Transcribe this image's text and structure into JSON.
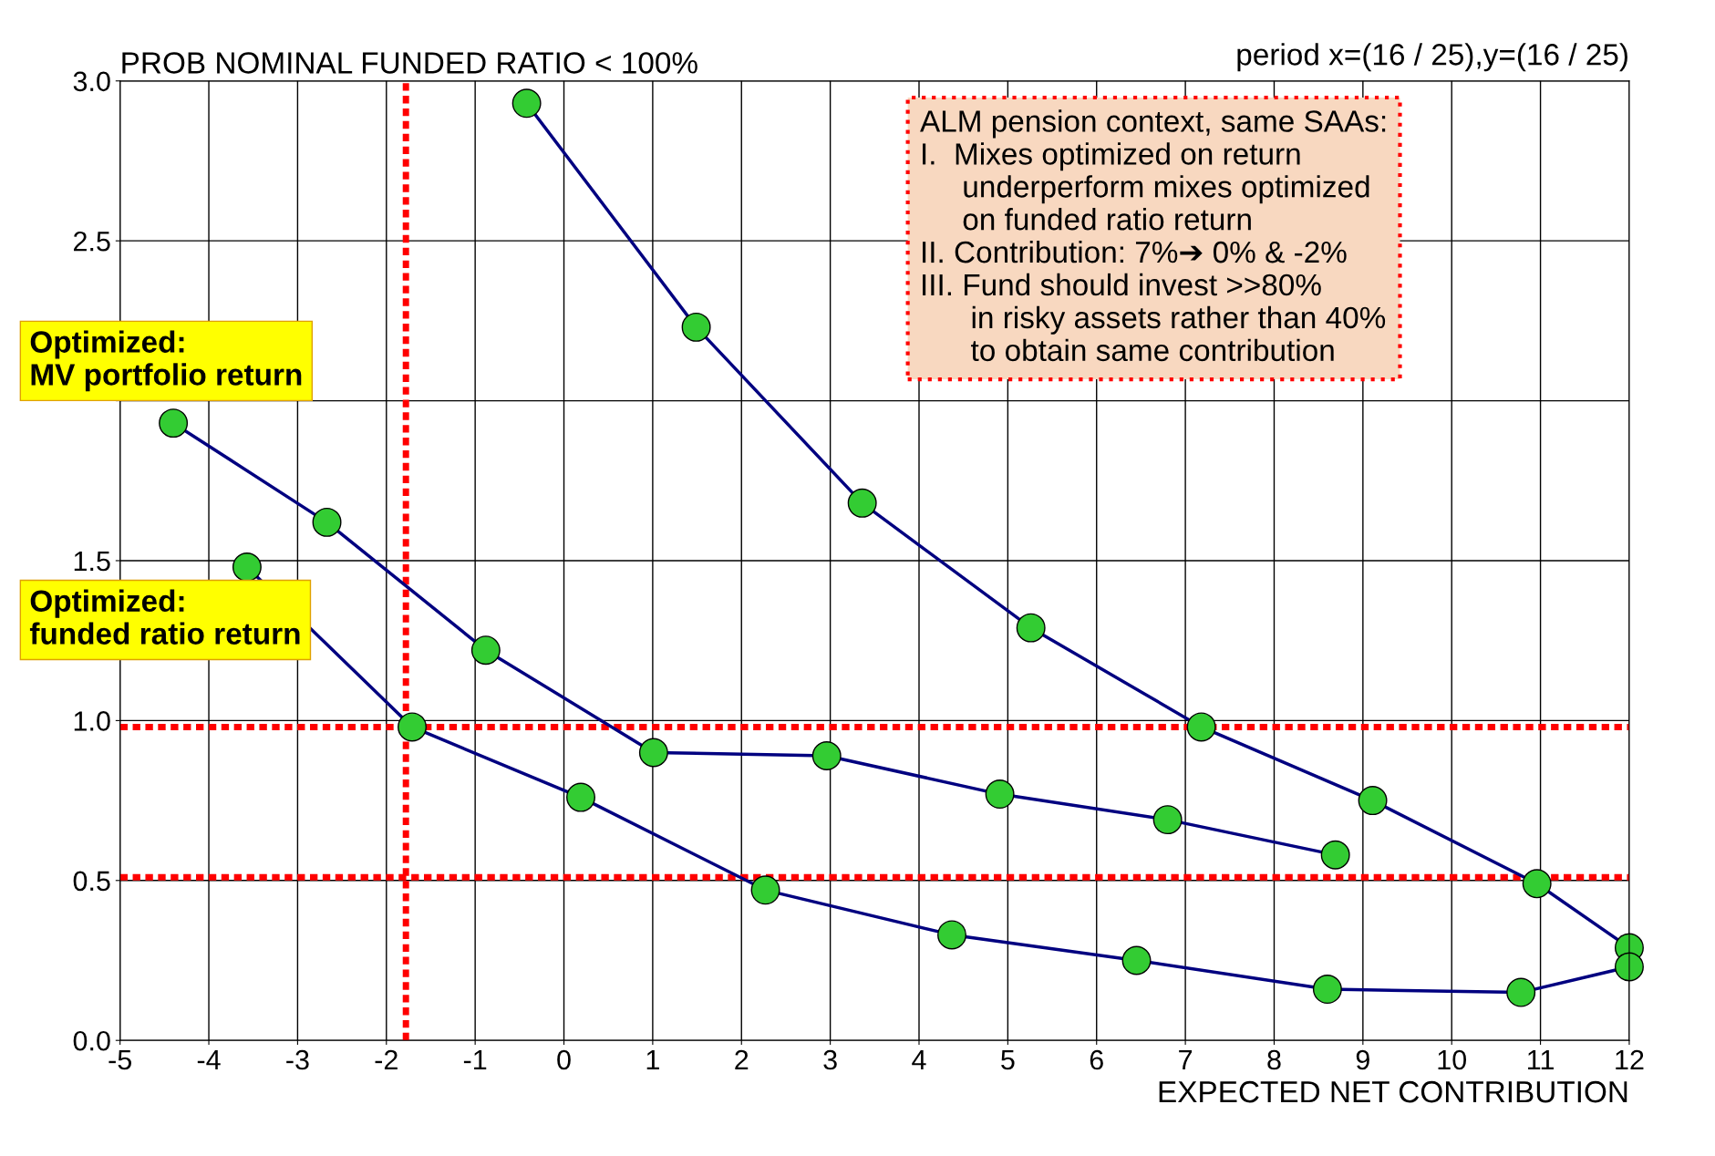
{
  "chart_data": {
    "type": "line",
    "title": "PROB NOMINAL FUNDED RATIO < 100%",
    "subtitle": "period x=(16 / 25),y=(16 / 25)",
    "xlabel": "EXPECTED NET CONTRIBUTION",
    "series": [
      {
        "color": "#000080",
        "x": [
          -0.42,
          1.49,
          3.36,
          5.26,
          7.18,
          9.11,
          10.96,
          12.0
        ],
        "values": [
          2.93,
          2.23,
          1.68,
          1.29,
          0.98,
          0.75,
          0.49,
          0.29
        ]
      },
      {
        "color": "#000080",
        "x": [
          -4.4,
          -2.67,
          -0.88,
          1.01,
          2.96,
          4.91,
          6.8,
          8.69
        ],
        "values": [
          1.93,
          1.62,
          1.22,
          0.9,
          0.89,
          0.77,
          0.69,
          0.58
        ]
      },
      {
        "color": "#000080",
        "x": [
          -3.57,
          -1.71,
          0.19,
          2.27,
          4.37,
          6.45,
          8.6,
          10.78,
          12.0
        ],
        "values": [
          1.48,
          0.98,
          0.76,
          0.47,
          0.33,
          0.25,
          0.16,
          0.15,
          0.23
        ]
      }
    ],
    "xlim": [
      -5,
      12
    ],
    "ylim": [
      0,
      3
    ],
    "xticks": [
      -5,
      -4,
      -3,
      -2,
      -1,
      0,
      1,
      2,
      3,
      4,
      5,
      6,
      7,
      8,
      9,
      10,
      11,
      12
    ],
    "yticks": [
      {
        "value": 0,
        "label": "0.0"
      },
      0.5,
      {
        "value": 1,
        "label": "1.0"
      },
      1.5,
      {
        "value": 2,
        "label": null
      },
      2.5,
      {
        "value": 3,
        "label": "3.0"
      }
    ],
    "grid": true,
    "legend": false,
    "marker": "circle",
    "line_style": "solid",
    "ref_lines": [
      {
        "axis": "x",
        "value": -1.78,
        "label": null,
        "color": "#ff0000",
        "line_style": "dotted"
      },
      {
        "axis": "y",
        "value": 0.98,
        "label": null,
        "color": "#ff0000",
        "line_style": "dotted"
      },
      {
        "axis": "y",
        "value": 0.51,
        "label": null,
        "color": "#ff0000",
        "line_style": "dotted"
      }
    ],
    "annotations": [
      "ALM pension context, same SAAs:\nI.  Mixes optimized on return\n     underperform mixes optimized\n     on funded ratio return\nII. Contribution: 7%➔ 0% & -2%\nIII. Fund should invest >>80%\n      in risky assets rather than 40%\n      to obtain same contribution",
      "Optimized:\nMV portfolio return",
      "Optimized:\nfunded ratio return"
    ]
  }
}
